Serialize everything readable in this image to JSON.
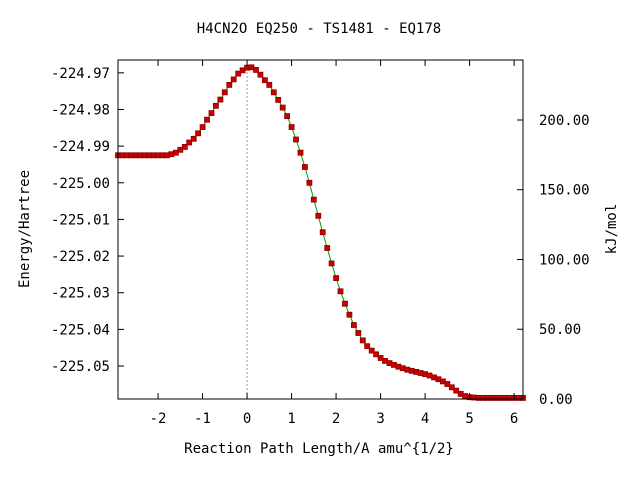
{
  "chart_data": {
    "type": "line",
    "title": "H4CN2O    EQ250 - TS1481 - EQ178",
    "xlabel": "Reaction Path Length/A amu^{1/2}",
    "ylabel": "Energy/Hartree",
    "y2label": "kJ/mol",
    "xlim": [
      -2.9,
      6.2
    ],
    "ylim": [
      -225.059,
      -224.9665
    ],
    "y2lim": [
      0.0,
      243.0
    ],
    "xticks": [
      -2,
      -1,
      0,
      1,
      2,
      3,
      4,
      5,
      6
    ],
    "xtick_labels": [
      "-2",
      "-1",
      "0",
      "1",
      "2",
      "3",
      "4",
      "5",
      "6"
    ],
    "yticks": [
      -224.97,
      -224.98,
      -224.99,
      -225.0,
      -225.01,
      -225.02,
      -225.03,
      -225.04,
      -225.05
    ],
    "ytick_labels": [
      "-224.97",
      "-224.98",
      "-224.99",
      "-225.00",
      "-225.01",
      "-225.02",
      "-225.03",
      "-225.04",
      "-225.05"
    ],
    "y2ticks": [
      0,
      50,
      100,
      150,
      200
    ],
    "y2tick_labels": [
      "0.00",
      "50.00",
      "100.00",
      "150.00",
      "200.00"
    ],
    "ts_marker_x": 0,
    "grid": false,
    "colors": {
      "line": "#00a000",
      "marker": "#cc0000",
      "marker_edge": "#8b0000",
      "ts_line": "#999999"
    },
    "series": [
      {
        "x": [
          -2.9,
          -2.8,
          -2.7,
          -2.6,
          -2.5,
          -2.4,
          -2.3,
          -2.2,
          -2.1,
          -2.0,
          -1.9,
          -1.8,
          -1.7,
          -1.6,
          -1.5,
          -1.4,
          -1.3,
          -1.2,
          -1.1,
          -1.0,
          -0.9,
          -0.8,
          -0.7,
          -0.6,
          -0.5,
          -0.4,
          -0.3,
          -0.2,
          -0.1,
          0.0,
          0.1,
          0.2,
          0.3,
          0.4,
          0.5,
          0.6,
          0.7,
          0.8,
          0.9,
          1.0,
          1.1,
          1.2,
          1.3,
          1.4,
          1.5,
          1.6,
          1.7,
          1.8,
          1.9,
          2.0,
          2.1,
          2.2,
          2.3,
          2.4,
          2.5,
          2.6,
          2.7,
          2.8,
          2.9,
          3.0,
          3.1,
          3.2,
          3.3,
          3.4,
          3.5,
          3.6,
          3.7,
          3.8,
          3.9,
          4.0,
          4.1,
          4.2,
          4.3,
          4.4,
          4.5,
          4.6,
          4.7,
          4.8,
          4.9,
          5.0,
          5.1,
          5.2,
          5.3,
          5.4,
          5.5,
          5.6,
          5.7,
          5.8,
          5.9,
          6.0,
          6.1,
          6.2
        ],
        "y": [
          -224.9925,
          -224.9925,
          -224.9925,
          -224.9925,
          -224.9925,
          -224.9925,
          -224.9925,
          -224.9925,
          -224.9925,
          -224.9925,
          -224.9925,
          -224.9925,
          -224.9922,
          -224.9918,
          -224.991,
          -224.9902,
          -224.989,
          -224.988,
          -224.9865,
          -224.9848,
          -224.9828,
          -224.981,
          -224.979,
          -224.9773,
          -224.9753,
          -224.9733,
          -224.9718,
          -224.9702,
          -224.9693,
          -224.9686,
          -224.9685,
          -224.9692,
          -224.9705,
          -224.972,
          -224.9733,
          -224.9753,
          -224.9774,
          -224.9795,
          -224.9818,
          -224.9848,
          -224.9882,
          -224.9918,
          -224.9957,
          -225.0,
          -225.0046,
          -225.009,
          -225.0135,
          -225.0178,
          -225.022,
          -225.026,
          -225.0296,
          -225.033,
          -225.036,
          -225.0388,
          -225.041,
          -225.043,
          -225.0446,
          -225.0458,
          -225.0468,
          -225.0478,
          -225.0486,
          -225.0492,
          -225.0497,
          -225.0502,
          -225.0506,
          -225.051,
          -225.0513,
          -225.0516,
          -225.0519,
          -225.0522,
          -225.0526,
          -225.0531,
          -225.0536,
          -225.0542,
          -225.0549,
          -225.0558,
          -225.0567,
          -225.0576,
          -225.0582,
          -225.0585,
          -225.0586,
          -225.0587,
          -225.0587,
          -225.0587,
          -225.0587,
          -225.0587,
          -225.0587,
          -225.0587,
          -225.0587,
          -225.0587,
          -225.0587,
          -225.0587
        ]
      }
    ]
  }
}
